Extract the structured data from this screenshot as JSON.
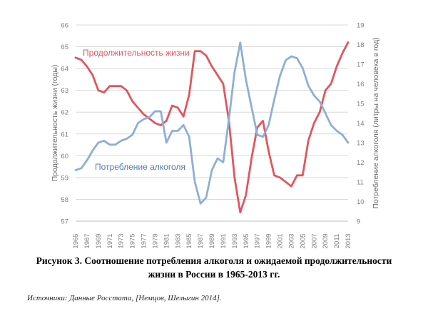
{
  "chart_data": {
    "type": "line",
    "title": "",
    "x": [
      1965,
      1966,
      1967,
      1968,
      1969,
      1970,
      1971,
      1972,
      1973,
      1974,
      1975,
      1976,
      1977,
      1978,
      1979,
      1980,
      1981,
      1982,
      1983,
      1984,
      1985,
      1986,
      1987,
      1988,
      1989,
      1990,
      1991,
      1992,
      1993,
      1994,
      1995,
      1996,
      1997,
      1998,
      1999,
      2000,
      2001,
      2002,
      2003,
      2004,
      2005,
      2006,
      2007,
      2008,
      2009,
      2010,
      2011,
      2012,
      2013
    ],
    "x_tick_labels": [
      "1965",
      "1967",
      "1969",
      "1971",
      "1973",
      "1975",
      "1977",
      "1979",
      "1981",
      "1983",
      "1985",
      "1987",
      "1989",
      "1991",
      "1993",
      "1995",
      "1997",
      "1999",
      "2001",
      "2003",
      "2005",
      "2007",
      "2009",
      "2011",
      "2013"
    ],
    "left_axis": {
      "label": "Продолжительность жизни (годы)",
      "ylim": [
        57,
        66
      ],
      "ticks": [
        "57",
        "58",
        "59",
        "60",
        "61",
        "62",
        "63",
        "64",
        "65",
        "66"
      ]
    },
    "right_axis": {
      "label": "Потребление алкоголя (литры на человека в год)",
      "ylim": [
        9,
        19
      ],
      "ticks": [
        "9",
        "10",
        "11",
        "12",
        "13",
        "14",
        "15",
        "16",
        "17",
        "18",
        "19"
      ]
    },
    "series": [
      {
        "name": "Продолжительность жизни",
        "axis": "left",
        "color": "#e0565e",
        "values": [
          64.5,
          64.4,
          64.1,
          63.7,
          63.0,
          62.9,
          63.2,
          63.2,
          63.2,
          63.0,
          62.5,
          62.2,
          61.9,
          61.7,
          61.5,
          61.4,
          61.6,
          62.3,
          62.2,
          61.8,
          62.8,
          64.8,
          64.8,
          64.6,
          64.1,
          63.7,
          63.3,
          61.6,
          59.0,
          57.4,
          58.2,
          59.9,
          61.3,
          61.6,
          60.2,
          59.1,
          59.0,
          58.8,
          58.6,
          59.1,
          59.1,
          60.7,
          61.5,
          62.0,
          63.0,
          63.3,
          64.1,
          64.7,
          65.2
        ]
      },
      {
        "name": "Потребление алкоголя",
        "axis": "right",
        "color": "#8eafd6",
        "values": [
          11.6,
          11.7,
          12.1,
          12.6,
          13.0,
          13.1,
          12.9,
          12.9,
          13.1,
          13.2,
          13.4,
          14.0,
          14.2,
          14.3,
          14.6,
          14.6,
          13.0,
          13.6,
          13.6,
          13.9,
          13.3,
          11.0,
          9.9,
          10.2,
          11.6,
          12.2,
          12.0,
          14.2,
          16.6,
          18.1,
          16.2,
          14.8,
          13.4,
          13.3,
          13.9,
          15.2,
          16.4,
          17.2,
          17.4,
          17.3,
          16.8,
          15.9,
          15.4,
          15.1,
          14.5,
          13.9,
          13.6,
          13.4,
          13.0
        ]
      }
    ],
    "grid": true,
    "legend": "inline-labels"
  },
  "caption": {
    "line1": "Рисунок 3. Соотношение потребления алкоголя и ожидаемой продолжительности",
    "line2": "жизни в России в 1965-2013 гг."
  },
  "source": "Источники: Данные Росстата, [Немцов, Шелыгин 2014]."
}
